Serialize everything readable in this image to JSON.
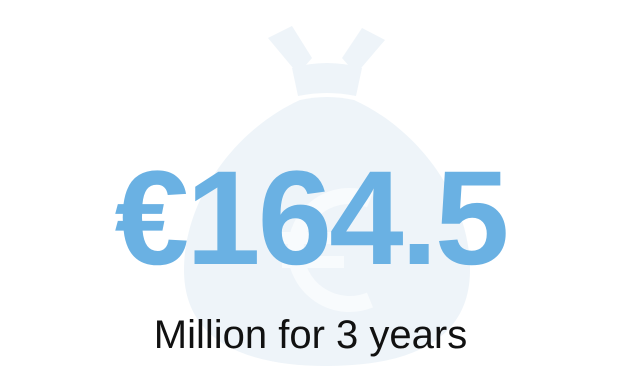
{
  "amount": "€164.5",
  "subtitle": "Million for 3 years",
  "icon": "money-bag-euro-icon",
  "colors": {
    "amount": "#6ab1e3",
    "subtitle": "#111111",
    "bag": "#eef4f9",
    "bag_symbol": "#f8fbfd",
    "background": "#ffffff"
  }
}
